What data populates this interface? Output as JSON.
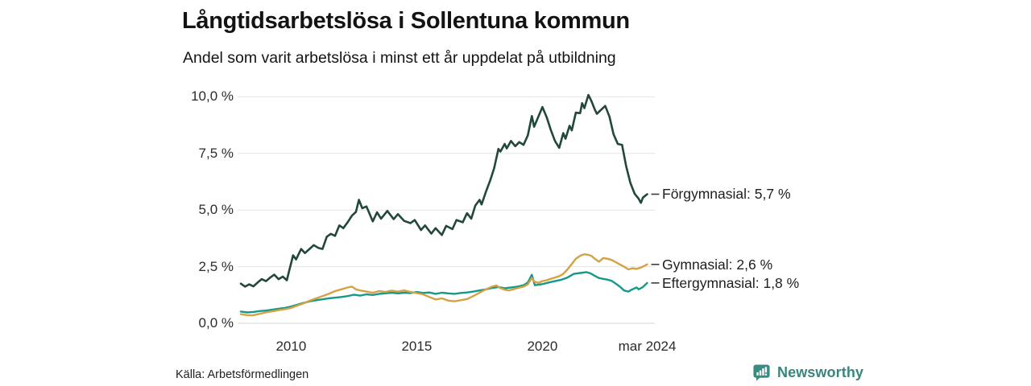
{
  "header": {
    "title": "Långtidsarbetslösa i Sollentuna kommun",
    "subtitle": "Andel som varit arbetslösa i minst ett år uppdelat på utbildning"
  },
  "footer": {
    "source": "Källa: Arbetsförmedlingen",
    "brand": "Newsworthy"
  },
  "colors": {
    "forgymnasial": "#21483a",
    "gymnasial": "#d4a144",
    "eftergymnasial": "#16988a",
    "grid": "#e4e4e4",
    "grid_zero": "#d7d7d7",
    "leader_dash": "#3c3c3c",
    "brand_teal": "#38857c",
    "text": "#1e1e1e"
  },
  "chart_data": {
    "type": "line",
    "title": "Långtidsarbetslösa i Sollentuna kommun",
    "subtitle": "Andel som varit arbetslösa i minst ett år uppdelat på utbildning",
    "xlabel": "",
    "ylabel": "",
    "grid": true,
    "legend_position": "right-end-labels",
    "x_axis": {
      "range": [
        2007.85,
        2024.45
      ],
      "ticks": [
        {
          "year": 2010,
          "label": "2010"
        },
        {
          "year": 2015,
          "label": "2015"
        },
        {
          "year": 2020,
          "label": "2020"
        },
        {
          "year": 2024.17,
          "label": "mar 2024"
        }
      ]
    },
    "y_axis": {
      "range": [
        0,
        10.4
      ],
      "unit": "%",
      "ticks": [
        {
          "value": 0,
          "label": "0,0 %"
        },
        {
          "value": 2.5,
          "label": "2,5 %"
        },
        {
          "value": 5,
          "label": "5,0 %"
        },
        {
          "value": 7.5,
          "label": "7,5 %"
        },
        {
          "value": 10,
          "label": "10,0 %"
        }
      ]
    },
    "series": [
      {
        "name": "Förgymnasial",
        "end_label": "Förgymnasial: 5,7 %",
        "end_value": "5,7 %",
        "color": "#21483a",
        "width": 2.6,
        "points": [
          [
            2008.0,
            1.75
          ],
          [
            2008.17,
            1.62
          ],
          [
            2008.33,
            1.72
          ],
          [
            2008.5,
            1.63
          ],
          [
            2008.67,
            1.8
          ],
          [
            2008.83,
            1.95
          ],
          [
            2009.0,
            1.86
          ],
          [
            2009.17,
            2.02
          ],
          [
            2009.33,
            2.15
          ],
          [
            2009.5,
            1.95
          ],
          [
            2009.67,
            2.06
          ],
          [
            2009.83,
            1.9
          ],
          [
            2009.92,
            2.3
          ],
          [
            2010.08,
            3.0
          ],
          [
            2010.2,
            2.82
          ],
          [
            2010.4,
            3.28
          ],
          [
            2010.55,
            3.1
          ],
          [
            2010.75,
            3.3
          ],
          [
            2010.9,
            3.45
          ],
          [
            2011.08,
            3.33
          ],
          [
            2011.25,
            3.28
          ],
          [
            2011.42,
            3.82
          ],
          [
            2011.58,
            3.95
          ],
          [
            2011.75,
            3.86
          ],
          [
            2011.92,
            4.32
          ],
          [
            2012.08,
            4.2
          ],
          [
            2012.25,
            4.46
          ],
          [
            2012.42,
            4.75
          ],
          [
            2012.58,
            4.92
          ],
          [
            2012.7,
            5.45
          ],
          [
            2012.83,
            5.08
          ],
          [
            2013.0,
            5.16
          ],
          [
            2013.25,
            4.5
          ],
          [
            2013.42,
            4.9
          ],
          [
            2013.58,
            4.62
          ],
          [
            2013.83,
            4.96
          ],
          [
            2014.08,
            4.6
          ],
          [
            2014.25,
            4.82
          ],
          [
            2014.5,
            4.52
          ],
          [
            2014.75,
            4.42
          ],
          [
            2014.92,
            4.56
          ],
          [
            2015.17,
            4.12
          ],
          [
            2015.33,
            4.32
          ],
          [
            2015.58,
            3.96
          ],
          [
            2015.75,
            4.2
          ],
          [
            2016.0,
            3.9
          ],
          [
            2016.17,
            4.3
          ],
          [
            2016.42,
            4.16
          ],
          [
            2016.58,
            4.56
          ],
          [
            2016.83,
            4.46
          ],
          [
            2017.0,
            4.86
          ],
          [
            2017.17,
            4.62
          ],
          [
            2017.33,
            5.2
          ],
          [
            2017.5,
            5.45
          ],
          [
            2017.58,
            5.25
          ],
          [
            2017.75,
            5.8
          ],
          [
            2017.92,
            6.3
          ],
          [
            2018.08,
            6.85
          ],
          [
            2018.25,
            7.7
          ],
          [
            2018.33,
            7.58
          ],
          [
            2018.5,
            7.92
          ],
          [
            2018.58,
            7.72
          ],
          [
            2018.75,
            8.05
          ],
          [
            2018.92,
            7.82
          ],
          [
            2019.08,
            8.0
          ],
          [
            2019.25,
            7.88
          ],
          [
            2019.42,
            8.3
          ],
          [
            2019.58,
            9.15
          ],
          [
            2019.67,
            8.68
          ],
          [
            2019.83,
            9.1
          ],
          [
            2020.0,
            9.55
          ],
          [
            2020.17,
            9.1
          ],
          [
            2020.33,
            8.55
          ],
          [
            2020.5,
            8.05
          ],
          [
            2020.67,
            7.75
          ],
          [
            2020.83,
            8.4
          ],
          [
            2020.92,
            8.15
          ],
          [
            2021.08,
            8.72
          ],
          [
            2021.17,
            8.52
          ],
          [
            2021.33,
            9.3
          ],
          [
            2021.5,
            9.28
          ],
          [
            2021.58,
            9.72
          ],
          [
            2021.67,
            9.5
          ],
          [
            2021.83,
            10.08
          ],
          [
            2021.95,
            9.82
          ],
          [
            2022.08,
            9.45
          ],
          [
            2022.17,
            9.25
          ],
          [
            2022.33,
            9.42
          ],
          [
            2022.5,
            9.6
          ],
          [
            2022.67,
            9.12
          ],
          [
            2022.83,
            8.35
          ],
          [
            2023.0,
            7.92
          ],
          [
            2023.17,
            7.88
          ],
          [
            2023.33,
            6.95
          ],
          [
            2023.5,
            6.2
          ],
          [
            2023.67,
            5.72
          ],
          [
            2023.83,
            5.5
          ],
          [
            2023.92,
            5.32
          ],
          [
            2024.0,
            5.55
          ],
          [
            2024.08,
            5.62
          ],
          [
            2024.17,
            5.7
          ]
        ]
      },
      {
        "name": "Gymnasial",
        "end_label": "Gymnasial: 2,6 %",
        "end_value": "2,6 %",
        "color": "#d4a144",
        "width": 2.4,
        "points": [
          [
            2008.0,
            0.4
          ],
          [
            2008.25,
            0.36
          ],
          [
            2008.5,
            0.35
          ],
          [
            2008.75,
            0.42
          ],
          [
            2009.0,
            0.48
          ],
          [
            2009.25,
            0.53
          ],
          [
            2009.5,
            0.58
          ],
          [
            2009.75,
            0.62
          ],
          [
            2010.0,
            0.68
          ],
          [
            2010.25,
            0.78
          ],
          [
            2010.5,
            0.88
          ],
          [
            2010.75,
            1.0
          ],
          [
            2011.0,
            1.1
          ],
          [
            2011.25,
            1.2
          ],
          [
            2011.5,
            1.3
          ],
          [
            2011.75,
            1.42
          ],
          [
            2012.0,
            1.5
          ],
          [
            2012.25,
            1.58
          ],
          [
            2012.42,
            1.62
          ],
          [
            2012.58,
            1.5
          ],
          [
            2012.75,
            1.45
          ],
          [
            2013.0,
            1.4
          ],
          [
            2013.25,
            1.35
          ],
          [
            2013.5,
            1.42
          ],
          [
            2013.75,
            1.38
          ],
          [
            2014.0,
            1.44
          ],
          [
            2014.25,
            1.4
          ],
          [
            2014.5,
            1.45
          ],
          [
            2014.75,
            1.38
          ],
          [
            2015.0,
            1.33
          ],
          [
            2015.25,
            1.28
          ],
          [
            2015.5,
            1.16
          ],
          [
            2015.75,
            1.05
          ],
          [
            2016.0,
            1.1
          ],
          [
            2016.25,
            1.0
          ],
          [
            2016.5,
            0.97
          ],
          [
            2016.75,
            1.02
          ],
          [
            2017.0,
            1.07
          ],
          [
            2017.25,
            1.2
          ],
          [
            2017.5,
            1.35
          ],
          [
            2017.75,
            1.5
          ],
          [
            2018.0,
            1.62
          ],
          [
            2018.17,
            1.67
          ],
          [
            2018.33,
            1.55
          ],
          [
            2018.5,
            1.48
          ],
          [
            2018.67,
            1.45
          ],
          [
            2018.83,
            1.5
          ],
          [
            2019.0,
            1.55
          ],
          [
            2019.25,
            1.62
          ],
          [
            2019.42,
            1.72
          ],
          [
            2019.58,
            2.0
          ],
          [
            2019.67,
            1.85
          ],
          [
            2019.83,
            1.78
          ],
          [
            2020.0,
            1.86
          ],
          [
            2020.17,
            1.9
          ],
          [
            2020.33,
            1.96
          ],
          [
            2020.5,
            2.02
          ],
          [
            2020.67,
            2.08
          ],
          [
            2020.83,
            2.18
          ],
          [
            2021.0,
            2.38
          ],
          [
            2021.17,
            2.62
          ],
          [
            2021.33,
            2.85
          ],
          [
            2021.5,
            2.98
          ],
          [
            2021.67,
            3.05
          ],
          [
            2021.83,
            3.02
          ],
          [
            2021.95,
            2.98
          ],
          [
            2022.08,
            2.85
          ],
          [
            2022.25,
            2.72
          ],
          [
            2022.42,
            2.88
          ],
          [
            2022.58,
            2.85
          ],
          [
            2022.75,
            2.8
          ],
          [
            2022.92,
            2.7
          ],
          [
            2023.08,
            2.6
          ],
          [
            2023.25,
            2.5
          ],
          [
            2023.42,
            2.38
          ],
          [
            2023.58,
            2.43
          ],
          [
            2023.75,
            2.4
          ],
          [
            2023.92,
            2.46
          ],
          [
            2024.08,
            2.55
          ],
          [
            2024.17,
            2.6
          ]
        ]
      },
      {
        "name": "Eftergymnasial",
        "end_label": "Eftergymnasial: 1,8 %",
        "end_value": "1,8 %",
        "color": "#16988a",
        "width": 2.4,
        "points": [
          [
            2008.0,
            0.52
          ],
          [
            2008.25,
            0.48
          ],
          [
            2008.5,
            0.5
          ],
          [
            2008.75,
            0.54
          ],
          [
            2009.0,
            0.56
          ],
          [
            2009.25,
            0.6
          ],
          [
            2009.5,
            0.64
          ],
          [
            2009.75,
            0.68
          ],
          [
            2010.0,
            0.74
          ],
          [
            2010.25,
            0.82
          ],
          [
            2010.5,
            0.9
          ],
          [
            2010.75,
            0.97
          ],
          [
            2011.0,
            1.02
          ],
          [
            2011.25,
            1.06
          ],
          [
            2011.5,
            1.1
          ],
          [
            2011.75,
            1.13
          ],
          [
            2012.0,
            1.16
          ],
          [
            2012.25,
            1.2
          ],
          [
            2012.5,
            1.26
          ],
          [
            2012.75,
            1.22
          ],
          [
            2013.0,
            1.28
          ],
          [
            2013.25,
            1.25
          ],
          [
            2013.5,
            1.3
          ],
          [
            2013.75,
            1.32
          ],
          [
            2014.0,
            1.35
          ],
          [
            2014.25,
            1.32
          ],
          [
            2014.5,
            1.35
          ],
          [
            2014.75,
            1.33
          ],
          [
            2015.0,
            1.38
          ],
          [
            2015.25,
            1.34
          ],
          [
            2015.5,
            1.36
          ],
          [
            2015.75,
            1.3
          ],
          [
            2016.0,
            1.35
          ],
          [
            2016.25,
            1.32
          ],
          [
            2016.5,
            1.3
          ],
          [
            2016.75,
            1.34
          ],
          [
            2017.0,
            1.36
          ],
          [
            2017.25,
            1.4
          ],
          [
            2017.5,
            1.45
          ],
          [
            2017.75,
            1.5
          ],
          [
            2018.0,
            1.56
          ],
          [
            2018.25,
            1.6
          ],
          [
            2018.5,
            1.55
          ],
          [
            2018.75,
            1.58
          ],
          [
            2019.0,
            1.62
          ],
          [
            2019.25,
            1.68
          ],
          [
            2019.42,
            1.8
          ],
          [
            2019.58,
            2.14
          ],
          [
            2019.7,
            1.68
          ],
          [
            2019.83,
            1.7
          ],
          [
            2020.0,
            1.73
          ],
          [
            2020.25,
            1.8
          ],
          [
            2020.5,
            1.86
          ],
          [
            2020.75,
            1.92
          ],
          [
            2021.0,
            2.02
          ],
          [
            2021.25,
            2.18
          ],
          [
            2021.5,
            2.22
          ],
          [
            2021.75,
            2.26
          ],
          [
            2021.92,
            2.2
          ],
          [
            2022.08,
            2.1
          ],
          [
            2022.25,
            2.0
          ],
          [
            2022.42,
            1.96
          ],
          [
            2022.58,
            1.93
          ],
          [
            2022.75,
            1.88
          ],
          [
            2022.92,
            1.75
          ],
          [
            2023.08,
            1.62
          ],
          [
            2023.25,
            1.45
          ],
          [
            2023.42,
            1.4
          ],
          [
            2023.58,
            1.5
          ],
          [
            2023.75,
            1.58
          ],
          [
            2023.83,
            1.5
          ],
          [
            2024.0,
            1.6
          ],
          [
            2024.17,
            1.78
          ]
        ]
      }
    ]
  }
}
